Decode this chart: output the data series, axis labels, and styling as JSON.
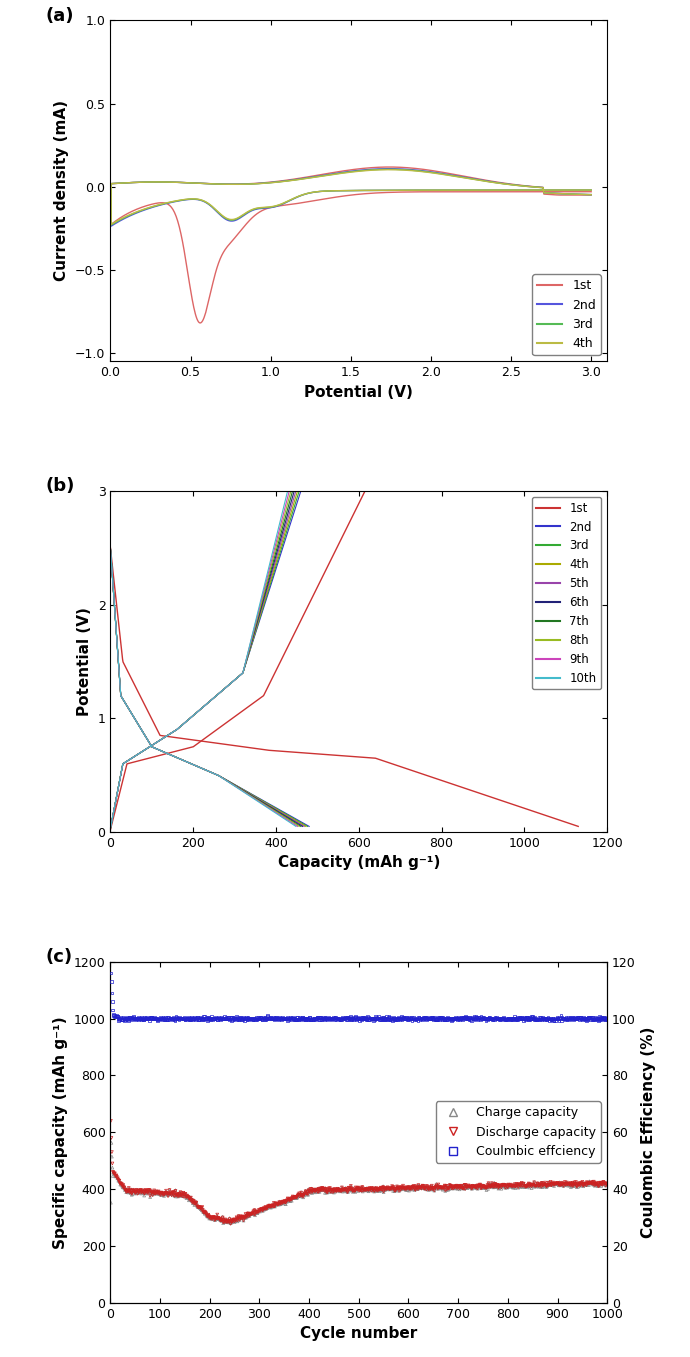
{
  "fig_width": 6.9,
  "fig_height": 13.57,
  "dpi": 100,
  "background_color": "#ffffff",
  "panel_a": {
    "label": "(a)",
    "xlabel": "Potential (V)",
    "ylabel": "Current density (mA)",
    "xlim": [
      0,
      3.1
    ],
    "ylim": [
      -1.05,
      1.0
    ],
    "xticks": [
      0,
      0.5,
      1.0,
      1.5,
      2.0,
      2.5,
      3.0
    ],
    "yticks": [
      -1.0,
      -0.5,
      0.0,
      0.5,
      1.0
    ],
    "legend_labels": [
      "1st",
      "2nd",
      "3rd",
      "4th"
    ],
    "legend_colors": [
      "#dd6666",
      "#5555dd",
      "#55bb55",
      "#bbbb44"
    ],
    "cycle_linewidths": [
      1.0,
      1.0,
      1.0,
      1.0
    ]
  },
  "panel_b": {
    "label": "(b)",
    "xlabel": "Capacity (mAh g⁻¹)",
    "ylabel": "Potential (V)",
    "xlim": [
      0,
      1200
    ],
    "ylim": [
      0,
      3.0
    ],
    "xticks": [
      0,
      200,
      400,
      600,
      800,
      1000,
      1200
    ],
    "yticks": [
      0,
      1,
      2,
      3
    ],
    "legend_labels": [
      "1st",
      "2nd",
      "3rd",
      "4th",
      "5th",
      "6th",
      "7th",
      "8th",
      "9th",
      "10th"
    ],
    "legend_colors": [
      "#cc3333",
      "#3333cc",
      "#33aa33",
      "#aaaa00",
      "#9944aa",
      "#222277",
      "#227722",
      "#99bb22",
      "#cc44bb",
      "#44bbcc"
    ]
  },
  "panel_c": {
    "label": "(c)",
    "xlabel": "Cycle number",
    "ylabel": "Specific capacity (mAh g⁻¹)",
    "ylabel_right": "Coulombic Efficiency (%)",
    "xlim": [
      0,
      1000
    ],
    "ylim_left": [
      0,
      1200
    ],
    "ylim_right": [
      0,
      120
    ],
    "xticks": [
      0,
      100,
      200,
      300,
      400,
      500,
      600,
      700,
      800,
      900,
      1000
    ],
    "yticks_left": [
      0,
      200,
      400,
      600,
      800,
      1000,
      1200
    ],
    "yticks_right": [
      0,
      20,
      40,
      60,
      80,
      100,
      120
    ],
    "charge_color": "#888888",
    "discharge_color": "#cc2222",
    "coulombic_color": "#2222cc",
    "legend_labels": [
      "Charge capacity",
      "Discharge capacity",
      "Coulmbic effciency"
    ]
  }
}
